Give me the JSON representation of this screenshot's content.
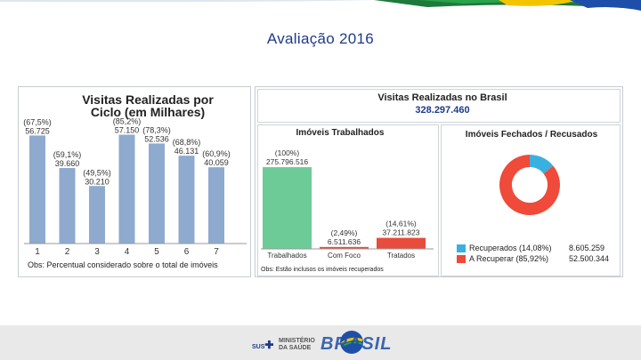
{
  "slide": {
    "title": "Avaliação 2016",
    "colors": {
      "title": "#1e3a8a",
      "bar_blue": "#8faacf",
      "bar_green": "#6ccb97",
      "bar_red": "#e74c3c",
      "donut_red": "#ef4a3a",
      "donut_blue": "#3ab0e0"
    },
    "footer": {
      "ms_line1": "MINISTÉRIO",
      "ms_line2": "DA SAÚDE",
      "sus": "SUS",
      "brand": "BRASIL"
    }
  },
  "chart_data": [
    {
      "type": "bar",
      "title": "Visitas Realizadas por Ciclo (em Milhares)",
      "categories": [
        "1",
        "2",
        "3",
        "4",
        "5",
        "6",
        "7"
      ],
      "values": [
        56.725,
        39.66,
        30.21,
        57.15,
        52.536,
        46.131,
        40.059
      ],
      "value_labels": [
        "56.725",
        "39.660",
        "30.210",
        "57.150",
        "52.536",
        "46.131",
        "40.059"
      ],
      "percent_labels": [
        "(67,5%)",
        "(59,1%)",
        "(49,5%)",
        "(85,2%)",
        "(78,3%)",
        "(68,8%)",
        "(60,9%)"
      ],
      "ylim": [
        0,
        70
      ],
      "grid": false,
      "note": "Obs: Percentual considerado sobre o total de imóveis"
    },
    {
      "type": "bar",
      "title": "Visitas Realizadas no Brasil",
      "total": "328.297.460",
      "subtitle": "Imóveis Trabalhados",
      "categories": [
        "Trabalhados",
        "Com Foco",
        "Tratados"
      ],
      "values": [
        275796516,
        6511636,
        37211823
      ],
      "value_labels": [
        "275.796.516",
        "6.511.636",
        "37.211.823"
      ],
      "percent_labels": [
        "(100%)",
        "(2,49%)",
        "(14,61%)"
      ],
      "ylim": [
        0,
        300000000
      ],
      "note": "Obs: Estão inclusos os imóveis recuperados"
    },
    {
      "type": "pie",
      "title": "Imóveis Fechados / Recusados",
      "labels": [
        "Recuperados (14,08%)",
        "A Recuperar (85,92%)"
      ],
      "values": [
        8605259,
        52500344
      ],
      "value_labels": [
        "8.605.259",
        "52.500.344"
      ],
      "percent": [
        14.08,
        85.92
      ],
      "legend": "bottom"
    }
  ]
}
